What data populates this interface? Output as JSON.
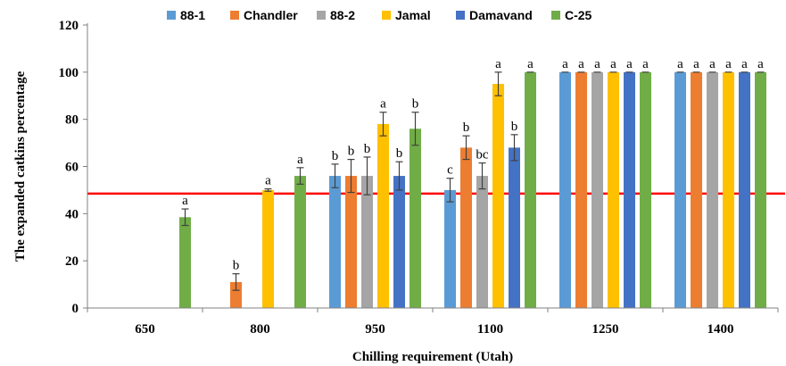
{
  "chart_data": {
    "type": "bar",
    "title": "",
    "xlabel": "Chilling requirement (Utah)",
    "ylabel": "The expanded catkins percentage",
    "ylim": [
      0,
      120
    ],
    "yticks": [
      0,
      20,
      40,
      60,
      80,
      100,
      120
    ],
    "categories": [
      "650",
      "800",
      "950",
      "1100",
      "1250",
      "1400"
    ],
    "legend_position": "top",
    "grid": false,
    "reference_line": {
      "y": 48.5,
      "color": "#ff0000"
    },
    "series": [
      {
        "name": "88-1",
        "color": "#5b9bd5",
        "values": [
          null,
          null,
          56,
          50,
          100,
          100
        ],
        "errors": [
          null,
          null,
          5,
          5,
          0,
          0
        ],
        "labels": [
          "",
          "",
          "b",
          "c",
          "a",
          "a"
        ]
      },
      {
        "name": "Chandler",
        "color": "#ed7d31",
        "values": [
          null,
          11,
          56,
          68,
          100,
          100
        ],
        "errors": [
          null,
          3.5,
          7,
          5,
          0,
          0
        ],
        "labels": [
          "",
          "b",
          "b",
          "b",
          "a",
          "a"
        ]
      },
      {
        "name": "88-2",
        "color": "#a5a5a5",
        "values": [
          null,
          null,
          56,
          56,
          100,
          100
        ],
        "errors": [
          null,
          null,
          8,
          5.5,
          0,
          0
        ],
        "labels": [
          "",
          "",
          "b",
          "bc",
          "a",
          "a"
        ]
      },
      {
        "name": "Jamal",
        "color": "#ffc000",
        "values": [
          null,
          50,
          78,
          95,
          100,
          100
        ],
        "errors": [
          null,
          0.5,
          5,
          5,
          0,
          0
        ],
        "labels": [
          "",
          "a",
          "a",
          "a",
          "a",
          "a"
        ]
      },
      {
        "name": "Damavand",
        "color": "#4472c4",
        "values": [
          null,
          null,
          56,
          68,
          100,
          100
        ],
        "errors": [
          null,
          null,
          6,
          5.5,
          0,
          0
        ],
        "labels": [
          "",
          "",
          "b",
          "b",
          "a",
          "a"
        ]
      },
      {
        "name": "C-25",
        "color": "#70ad47",
        "values": [
          38.5,
          56,
          76,
          100,
          100,
          100
        ],
        "errors": [
          3.5,
          3.5,
          7,
          0,
          0,
          0
        ],
        "labels": [
          "a",
          "a",
          "b",
          "a",
          "a",
          "a"
        ]
      }
    ]
  }
}
